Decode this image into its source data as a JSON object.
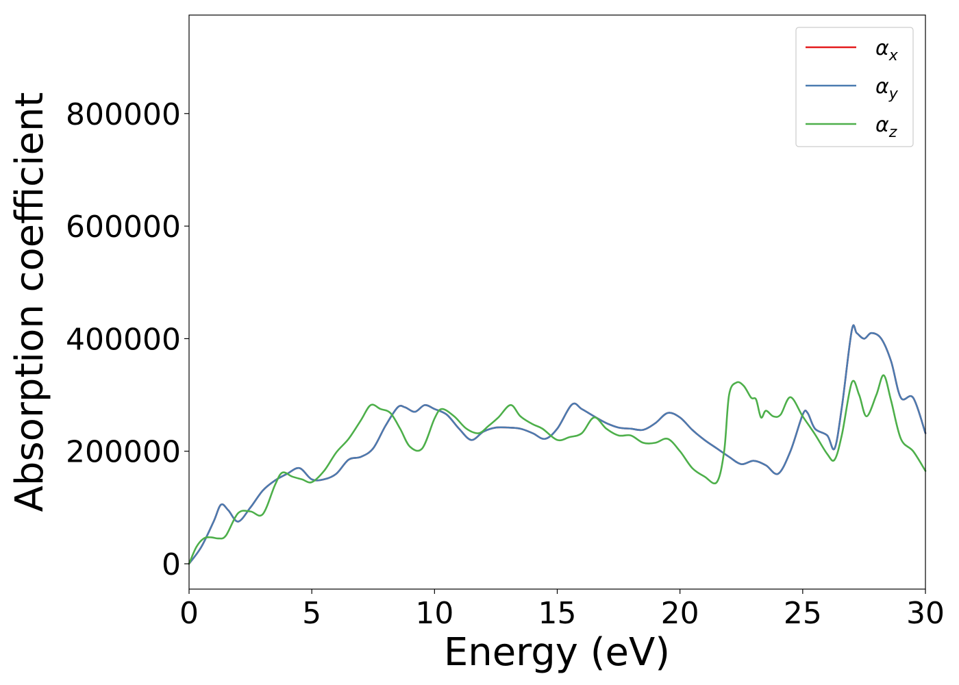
{
  "chart_data": {
    "type": "line",
    "title": "",
    "xlabel": "Energy (eV)",
    "ylabel": "Absorption coefficient",
    "xlim": [
      0,
      30
    ],
    "ylim": [
      -45000,
      975000
    ],
    "xticks": [
      0,
      5,
      10,
      15,
      20,
      25,
      30
    ],
    "yticks": [
      0,
      200000,
      400000,
      600000,
      800000
    ],
    "grid": false,
    "legend_position": "top-right",
    "series": [
      {
        "name": "α_x",
        "legend_main": "α",
        "legend_sub": "x",
        "color": "#e41a1c",
        "x": [
          0,
          0.5,
          1.0,
          1.3,
          1.6,
          2.0,
          2.5,
          3.0,
          3.5,
          4.0,
          4.5,
          5.0,
          5.5,
          6.0,
          6.5,
          7.0,
          7.5,
          8.0,
          8.5,
          8.8,
          9.2,
          9.6,
          10.0,
          10.5,
          11.0,
          11.5,
          12.0,
          12.5,
          13.0,
          13.5,
          14.0,
          14.5,
          15.0,
          15.6,
          16.0,
          16.5,
          17.0,
          17.5,
          18.0,
          18.5,
          19.0,
          19.5,
          20.0,
          20.5,
          21.0,
          21.5,
          22.0,
          22.5,
          23.0,
          23.5,
          24.0,
          24.5,
          25.0,
          25.2,
          25.5,
          26.0,
          26.3,
          26.6,
          27.0,
          27.2,
          27.5,
          27.8,
          28.2,
          28.6,
          29.0,
          29.5,
          30.0
        ],
        "y": [
          0,
          30000,
          75000,
          105000,
          95000,
          75000,
          100000,
          130000,
          148000,
          160000,
          170000,
          150000,
          150000,
          160000,
          185000,
          190000,
          205000,
          245000,
          278000,
          278000,
          270000,
          282000,
          275000,
          265000,
          240000,
          220000,
          235000,
          242000,
          242000,
          240000,
          232000,
          222000,
          240000,
          283000,
          275000,
          262000,
          250000,
          242000,
          240000,
          238000,
          250000,
          268000,
          260000,
          238000,
          220000,
          205000,
          190000,
          177000,
          183000,
          175000,
          160000,
          200000,
          265000,
          268000,
          240000,
          228000,
          205000,
          280000,
          415000,
          410000,
          400000,
          410000,
          400000,
          360000,
          295000,
          295000,
          232000
        ]
      },
      {
        "name": "α_y",
        "legend_main": "α",
        "legend_sub": "y",
        "color": "#4a7bb0",
        "x": [
          0,
          0.5,
          1.0,
          1.3,
          1.6,
          2.0,
          2.5,
          3.0,
          3.5,
          4.0,
          4.5,
          5.0,
          5.5,
          6.0,
          6.5,
          7.0,
          7.5,
          8.0,
          8.5,
          8.8,
          9.2,
          9.6,
          10.0,
          10.5,
          11.0,
          11.5,
          12.0,
          12.5,
          13.0,
          13.5,
          14.0,
          14.5,
          15.0,
          15.6,
          16.0,
          16.5,
          17.0,
          17.5,
          18.0,
          18.5,
          19.0,
          19.5,
          20.0,
          20.5,
          21.0,
          21.5,
          22.0,
          22.5,
          23.0,
          23.5,
          24.0,
          24.5,
          25.0,
          25.2,
          25.5,
          26.0,
          26.3,
          26.6,
          27.0,
          27.2,
          27.5,
          27.8,
          28.2,
          28.6,
          29.0,
          29.5,
          30.0
        ],
        "y": [
          0,
          30000,
          75000,
          105000,
          95000,
          75000,
          100000,
          130000,
          148000,
          160000,
          170000,
          150000,
          150000,
          160000,
          185000,
          190000,
          205000,
          245000,
          278000,
          278000,
          270000,
          282000,
          275000,
          265000,
          240000,
          220000,
          235000,
          242000,
          242000,
          240000,
          232000,
          222000,
          240000,
          283000,
          275000,
          262000,
          250000,
          242000,
          240000,
          238000,
          250000,
          268000,
          260000,
          238000,
          220000,
          205000,
          190000,
          177000,
          183000,
          175000,
          160000,
          200000,
          265000,
          268000,
          240000,
          228000,
          205000,
          280000,
          415000,
          410000,
          400000,
          410000,
          400000,
          360000,
          295000,
          295000,
          232000
        ]
      },
      {
        "name": "α_z",
        "legend_main": "α",
        "legend_sub": "z",
        "color": "#4daf4a",
        "x": [
          0,
          0.3,
          0.6,
          0.9,
          1.2,
          1.5,
          2.0,
          2.5,
          3.0,
          3.5,
          3.8,
          4.2,
          4.6,
          5.0,
          5.5,
          6.0,
          6.5,
          7.0,
          7.4,
          7.8,
          8.2,
          8.6,
          9.0,
          9.5,
          10.0,
          10.3,
          10.8,
          11.3,
          11.8,
          12.2,
          12.6,
          13.1,
          13.5,
          14.0,
          14.4,
          15.0,
          15.5,
          16.0,
          16.5,
          17.0,
          17.5,
          18.0,
          18.5,
          19.0,
          19.5,
          20.0,
          20.5,
          21.0,
          21.5,
          21.8,
          22.0,
          22.3,
          22.6,
          22.9,
          23.1,
          23.3,
          23.5,
          23.8,
          24.1,
          24.5,
          25.0,
          25.5,
          26.0,
          26.3,
          26.6,
          27.0,
          27.3,
          27.6,
          28.0,
          28.3,
          28.6,
          29.0,
          29.5,
          30.0
        ],
        "y": [
          0,
          30000,
          45000,
          47000,
          45000,
          50000,
          90000,
          93000,
          88000,
          140000,
          162000,
          155000,
          150000,
          145000,
          165000,
          198000,
          222000,
          255000,
          282000,
          275000,
          268000,
          240000,
          208000,
          205000,
          258000,
          275000,
          262000,
          240000,
          232000,
          245000,
          260000,
          282000,
          262000,
          248000,
          240000,
          220000,
          225000,
          232000,
          260000,
          240000,
          228000,
          228000,
          215000,
          215000,
          222000,
          200000,
          170000,
          155000,
          145000,
          200000,
          300000,
          322000,
          316000,
          295000,
          292000,
          260000,
          272000,
          262000,
          265000,
          296000,
          262000,
          230000,
          195000,
          185000,
          230000,
          322000,
          300000,
          262000,
          300000,
          335000,
          290000,
          222000,
          200000,
          165000
        ]
      }
    ]
  }
}
